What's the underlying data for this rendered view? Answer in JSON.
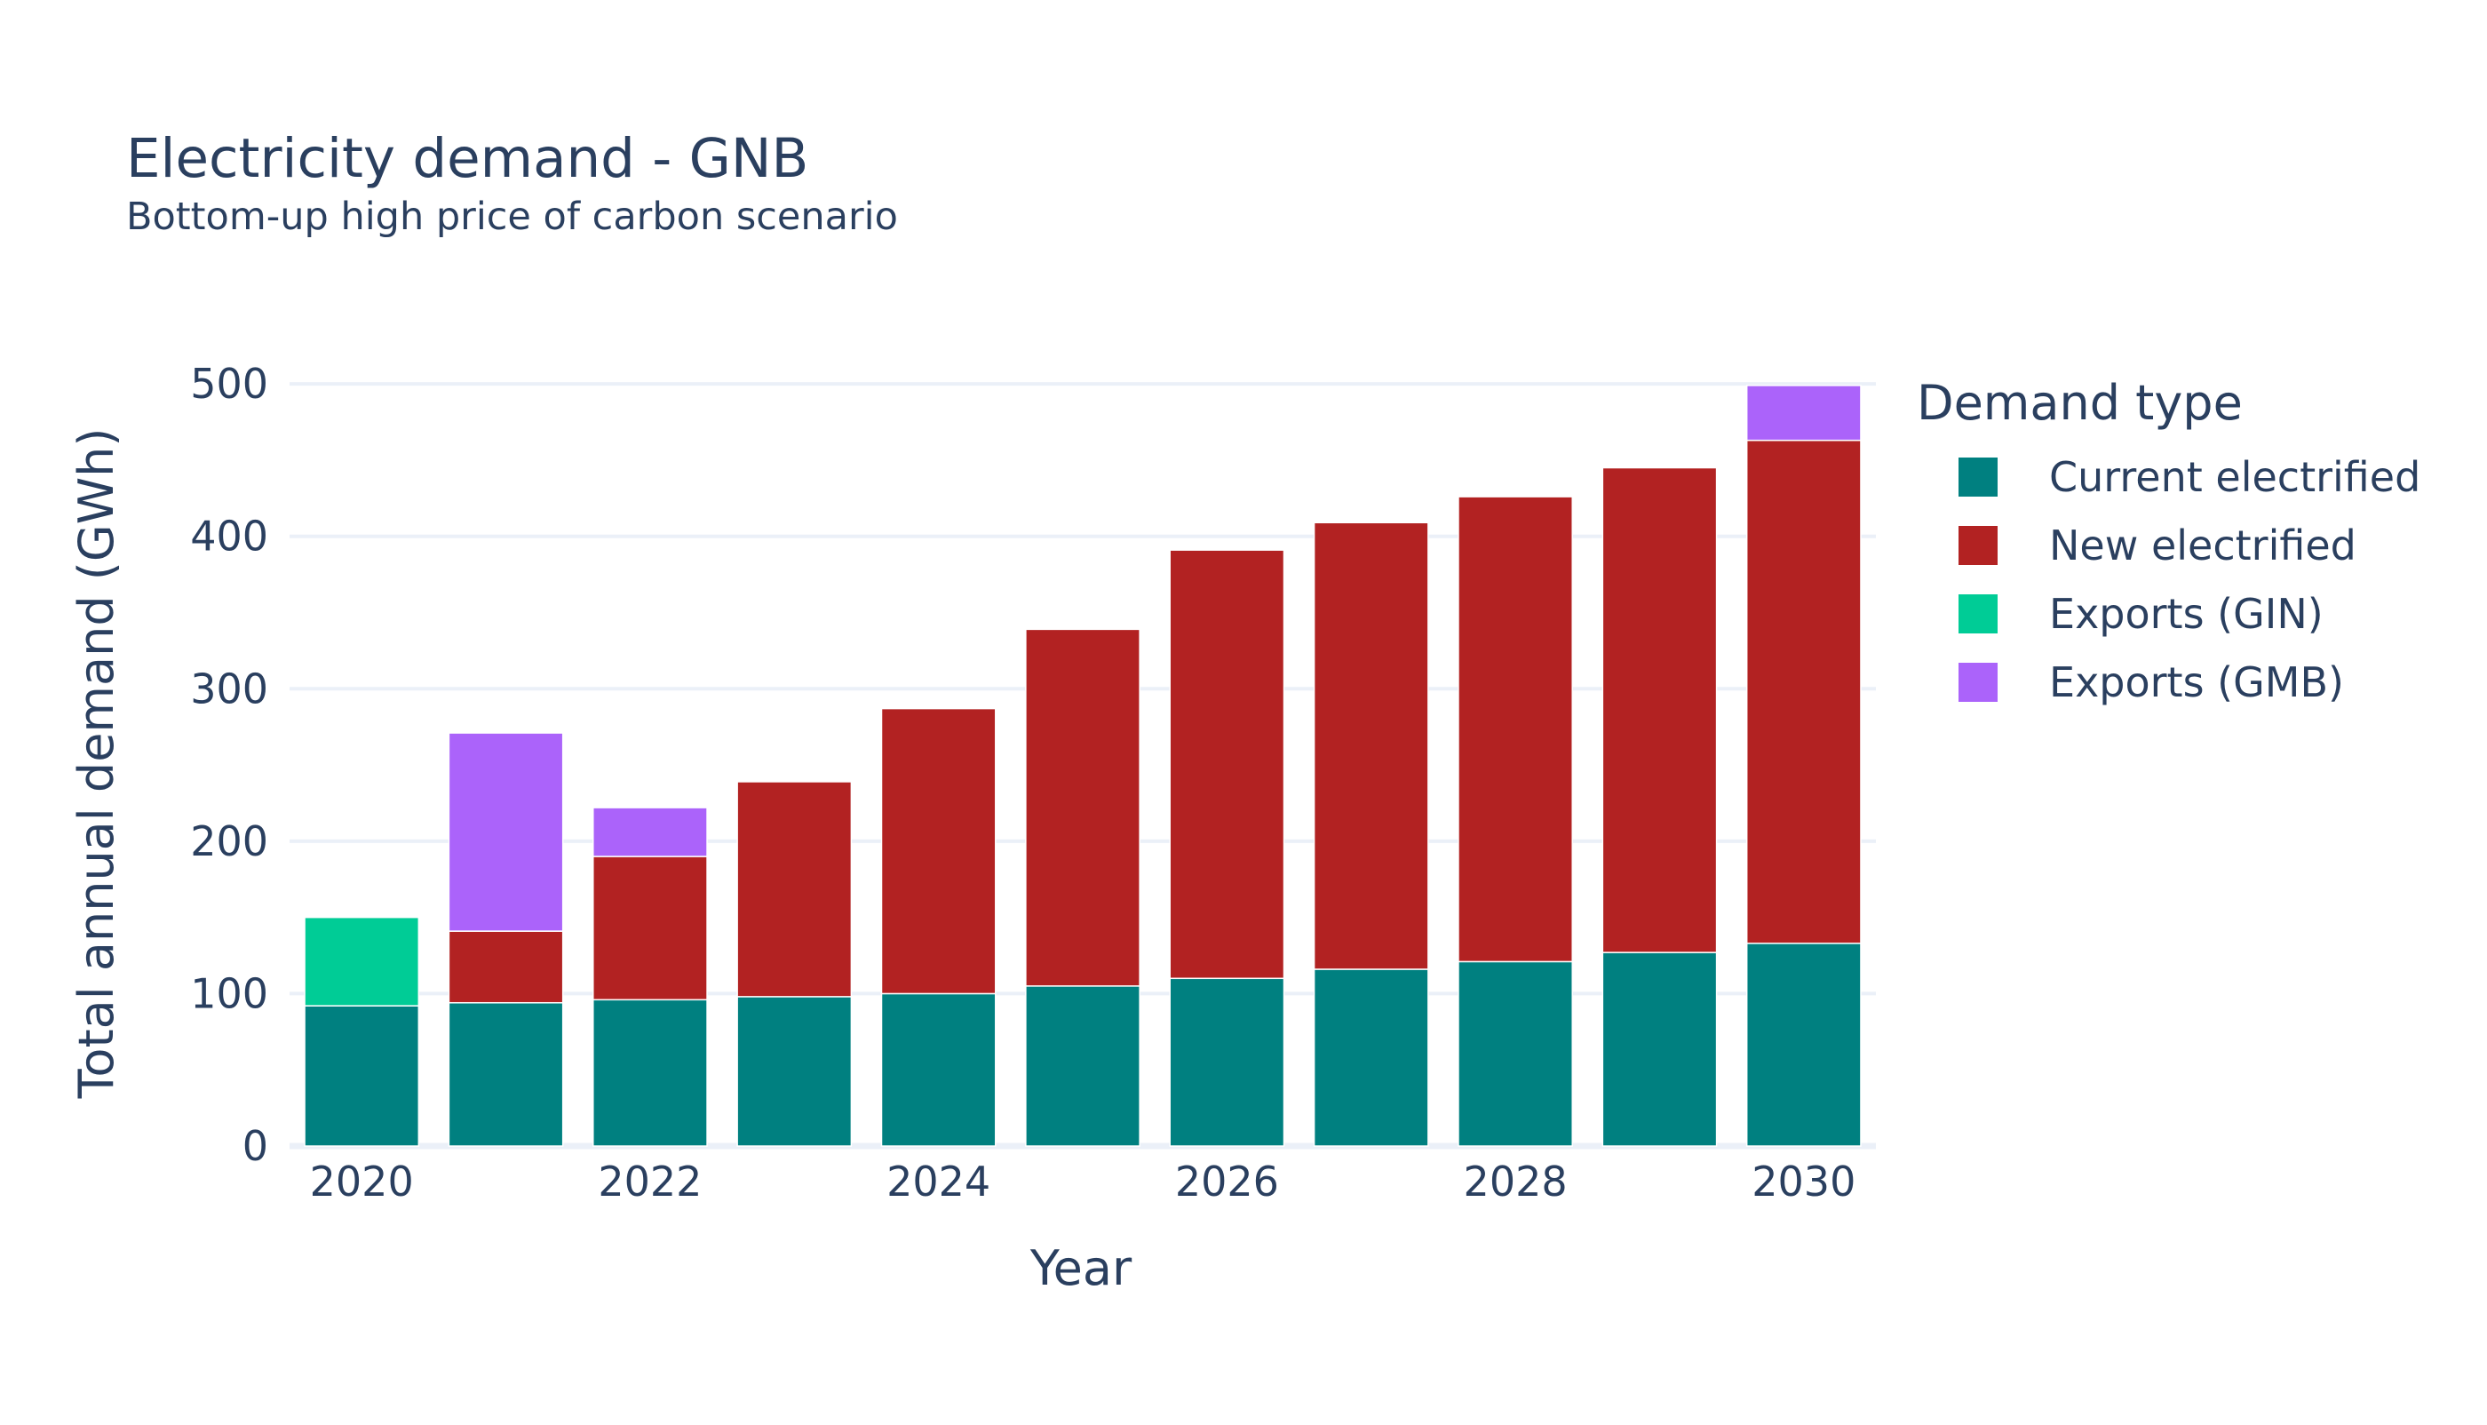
{
  "chart_data": {
    "type": "bar",
    "barmode": "stack",
    "title": "Electricity demand - GNB",
    "subtitle": "Bottom-up high price of carbon scenario",
    "xlabel": "Year",
    "ylabel": "Total annual demand (GWh)",
    "ylim": [
      0,
      510
    ],
    "yticks": [
      0,
      100,
      200,
      300,
      400,
      500
    ],
    "xticks": [
      2020,
      2022,
      2024,
      2026,
      2028,
      2030
    ],
    "grid": true,
    "legend_title": "Demand type",
    "legend_position": "right",
    "categories": [
      2020,
      2021,
      2022,
      2023,
      2024,
      2025,
      2026,
      2027,
      2028,
      2029,
      2030
    ],
    "series": [
      {
        "name": "Current electrified",
        "color": "#008080",
        "values": [
          92,
          94,
          96,
          98,
          100,
          105,
          110,
          116,
          121,
          127,
          133
        ]
      },
      {
        "name": "New electrified",
        "color": "#b22222",
        "values": [
          0,
          47,
          94,
          141,
          187,
          234,
          281,
          293,
          305,
          318,
          330
        ]
      },
      {
        "name": "Exports (GIN)",
        "color": "#00cc96",
        "values": [
          58,
          0,
          0,
          0,
          0,
          0,
          0,
          0,
          0,
          0,
          0
        ]
      },
      {
        "name": "Exports (GMB)",
        "color": "#ab63fa",
        "values": [
          0,
          130,
          32,
          0,
          0,
          0,
          0,
          0,
          0,
          0,
          36
        ]
      }
    ]
  }
}
